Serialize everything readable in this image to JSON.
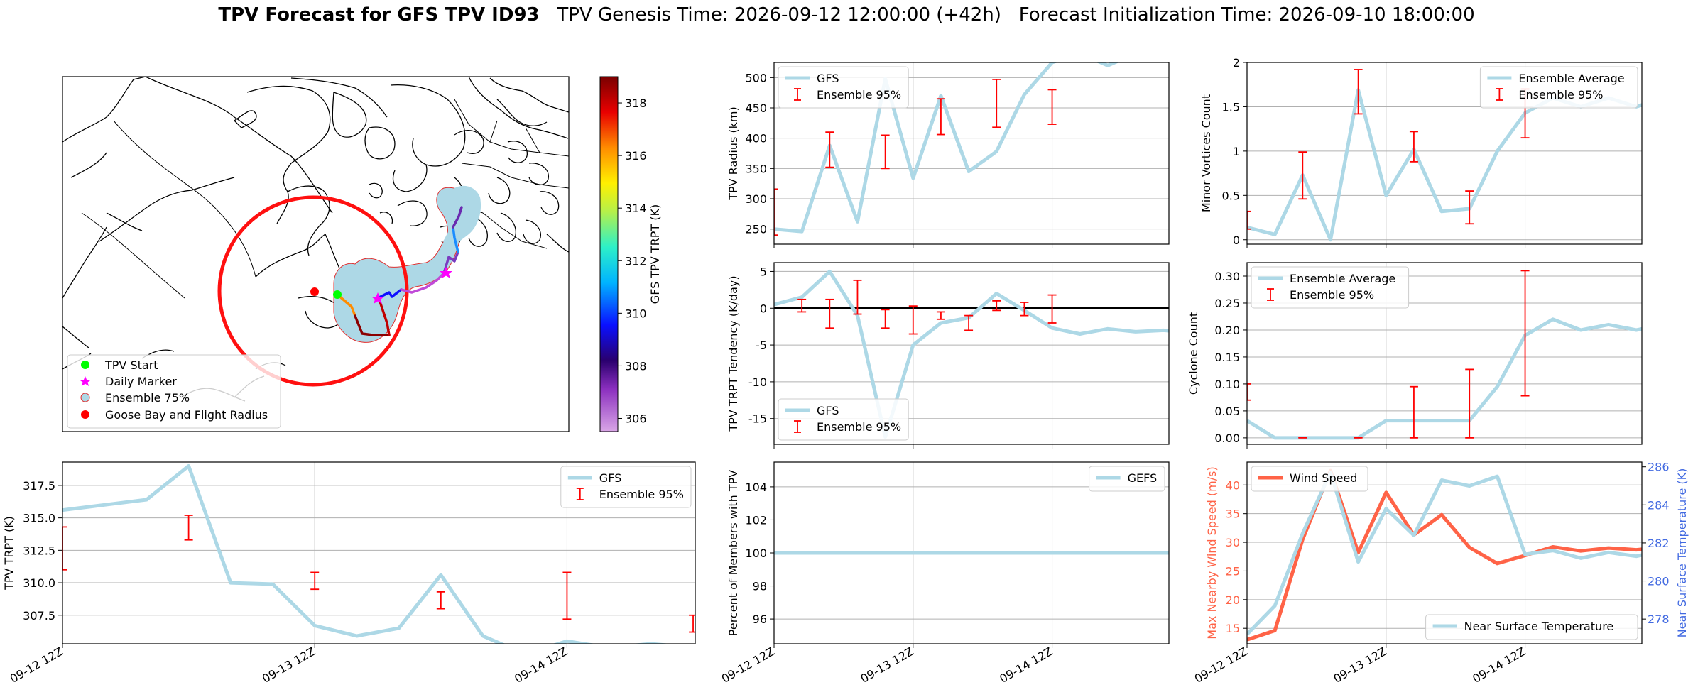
{
  "page": {
    "title_bold": "TPV Forecast for GFS TPV ID93",
    "title_genesis": "TPV Genesis Time: 2026-09-12 12:00:00 (+42h)",
    "title_init": "Forecast Initialization Time: 2026-09-10 18:00:00"
  },
  "colors": {
    "gfs_line": "#add8e6",
    "error_bar": "#ff0000",
    "wind_line": "#ff6347",
    "temp_axis": "#4169e1",
    "zero_line": "#000000"
  },
  "chart_data": [
    {
      "id": "map",
      "type": "map",
      "colorbar": {
        "label": "GFS TPV TRPT (K)",
        "ticks": [
          306,
          308,
          310,
          312,
          314,
          316,
          318
        ],
        "range": [
          305.5,
          319
        ]
      },
      "legend": {
        "items": [
          {
            "label": "TPV Start",
            "marker": "circle",
            "color": "#00ff00"
          },
          {
            "label": "Daily Marker",
            "marker": "star",
            "color": "#ff00ff"
          },
          {
            "label": "Ensemble 75%",
            "marker": "circle",
            "color": "#add8e6"
          },
          {
            "label": "Goose Bay and Flight Radius",
            "marker": "circle",
            "color": "#ff0000"
          }
        ],
        "placement": "lower-left"
      }
    },
    {
      "id": "radius",
      "type": "line",
      "ylabel": "TPV Radius (km)",
      "yticks": [
        250,
        300,
        350,
        400,
        450,
        500
      ],
      "ylim": [
        225,
        525
      ],
      "xlim": [
        1,
        15.2
      ],
      "x": [
        1,
        2,
        3,
        4,
        5,
        6,
        7,
        8,
        9,
        10,
        11,
        12,
        13,
        14,
        15,
        16
      ],
      "series": [
        {
          "name": "GFS",
          "values": [
            250,
            246,
            388,
            262,
            498,
            334,
            470,
            345,
            378,
            472,
            525,
            540,
            520,
            540,
            530,
            540
          ]
        }
      ],
      "errorbars": [
        {
          "x": 1,
          "low": 240,
          "high": 316
        },
        {
          "x": 3,
          "low": 352,
          "high": 410
        },
        {
          "x": 5,
          "low": 350,
          "high": 405
        },
        {
          "x": 7,
          "low": 406,
          "high": 465
        },
        {
          "x": 9,
          "low": 418,
          "high": 497
        },
        {
          "x": 11,
          "low": 423,
          "high": 480
        }
      ],
      "legend": [
        {
          "label": "GFS",
          "kind": "line"
        },
        {
          "label": "Ensemble 95%",
          "kind": "errorbar"
        }
      ],
      "legend_placement": "upper-left"
    },
    {
      "id": "minor",
      "type": "line",
      "ylabel": "Minor Vortices Count",
      "yticks": [
        0.0,
        0.5,
        1.0,
        1.5,
        2.0
      ],
      "ylim": [
        -0.05,
        2.0
      ],
      "xlim": [
        1,
        15.2
      ],
      "x": [
        1,
        2,
        3,
        4,
        5,
        6,
        7,
        8,
        9,
        10,
        11,
        12,
        13,
        14,
        15,
        16
      ],
      "series": [
        {
          "name": "Ensemble Average",
          "values": [
            0.14,
            0.06,
            0.73,
            0.0,
            1.69,
            0.5,
            1.02,
            0.32,
            0.35,
            1.0,
            1.43,
            1.6,
            1.5,
            1.6,
            1.5,
            1.6
          ]
        }
      ],
      "errorbars": [
        {
          "x": 1,
          "low": 0.12,
          "high": 0.32
        },
        {
          "x": 3,
          "low": 0.46,
          "high": 0.99
        },
        {
          "x": 5,
          "low": 1.42,
          "high": 1.92
        },
        {
          "x": 7,
          "low": 0.88,
          "high": 1.22
        },
        {
          "x": 9,
          "low": 0.18,
          "high": 0.55
        },
        {
          "x": 11,
          "low": 1.15,
          "high": 1.7
        }
      ],
      "legend": [
        {
          "label": "Ensemble Average",
          "kind": "line"
        },
        {
          "label": "Ensemble 95%",
          "kind": "errorbar"
        }
      ],
      "legend_placement": "upper-right"
    },
    {
      "id": "tendency",
      "type": "line",
      "ylabel": "TPV TRPT Tendency (K/day)",
      "yticks": [
        -15,
        -10,
        -5,
        0,
        5
      ],
      "ylim": [
        -18.5,
        6.2
      ],
      "xlim": [
        1,
        15.2
      ],
      "zero_line": 0,
      "x": [
        1,
        2,
        3,
        4,
        5,
        6,
        7,
        8,
        9,
        10,
        11,
        12,
        13,
        14,
        15,
        16
      ],
      "series": [
        {
          "name": "GFS",
          "values": [
            0.5,
            1.5,
            5.0,
            -1.0,
            -17.5,
            -5.0,
            -2.0,
            -1.3,
            2.0,
            -0.3,
            -2.7,
            -3.5,
            -2.8,
            -3.2,
            -3.0,
            -3.3
          ]
        }
      ],
      "errorbars": [
        {
          "x": 2,
          "low": -0.5,
          "high": 1.2
        },
        {
          "x": 3,
          "low": -2.7,
          "high": 1.2
        },
        {
          "x": 4,
          "low": -0.8,
          "high": 3.8
        },
        {
          "x": 5,
          "low": -2.7,
          "high": -0.2
        },
        {
          "x": 6,
          "low": -3.5,
          "high": 0.3
        },
        {
          "x": 7,
          "low": -1.5,
          "high": -0.5
        },
        {
          "x": 8,
          "low": -3.0,
          "high": -1.0
        },
        {
          "x": 9,
          "low": -0.3,
          "high": 1.0
        },
        {
          "x": 10,
          "low": -1.0,
          "high": 0.8
        },
        {
          "x": 11,
          "low": -2.0,
          "high": 1.8
        }
      ],
      "legend": [
        {
          "label": "GFS",
          "kind": "line"
        },
        {
          "label": "Ensemble 95%",
          "kind": "errorbar"
        }
      ],
      "legend_placement": "lower-left"
    },
    {
      "id": "cyclone",
      "type": "line",
      "ylabel": "Cyclone Count",
      "yticks": [
        0.0,
        0.05,
        0.1,
        0.15,
        0.2,
        0.25,
        0.3
      ],
      "ytick_labels": [
        "0.00",
        "0.05",
        "0.10",
        "0.15",
        "0.20",
        "0.25",
        "0.30"
      ],
      "ylim": [
        -0.012,
        0.325
      ],
      "xlim": [
        1,
        15.2
      ],
      "x": [
        1,
        2,
        3,
        4,
        5,
        6,
        7,
        8,
        9,
        10,
        11,
        12,
        13,
        14,
        15,
        16
      ],
      "series": [
        {
          "name": "Ensemble Average",
          "values": [
            0.032,
            0.0,
            0.0,
            0.0,
            0.0,
            0.032,
            0.032,
            0.032,
            0.032,
            0.095,
            0.19,
            0.22,
            0.2,
            0.21,
            0.2,
            0.21
          ]
        }
      ],
      "errorbars": [
        {
          "x": 1,
          "low": 0.07,
          "high": 0.1
        },
        {
          "x": 3,
          "low": 0.0,
          "high": 0.001
        },
        {
          "x": 5,
          "low": 0.0,
          "high": 0.001
        },
        {
          "x": 7,
          "low": 0.0,
          "high": 0.095
        },
        {
          "x": 9,
          "low": 0.0,
          "high": 0.127
        },
        {
          "x": 11,
          "low": 0.078,
          "high": 0.31
        }
      ],
      "legend": [
        {
          "label": "Ensemble Average",
          "kind": "line"
        },
        {
          "label": "Ensemble 95%",
          "kind": "errorbar"
        }
      ],
      "legend_placement": "upper-left"
    },
    {
      "id": "trpt",
      "type": "line",
      "ylabel": "TPV TRPT (K)",
      "yticks": [
        307.5,
        310.0,
        312.5,
        315.0,
        317.5
      ],
      "ytick_labels": [
        "307.5",
        "310.0",
        "312.5",
        "315.0",
        "317.5"
      ],
      "ylim": [
        305.3,
        319.3
      ],
      "xlim": [
        1,
        16.05
      ],
      "x": [
        1,
        2,
        3,
        4,
        5,
        6,
        7,
        8,
        9,
        10,
        11,
        12,
        13,
        14,
        15,
        16,
        17
      ],
      "xticks": [
        1,
        7,
        13
      ],
      "xtick_labels": [
        "09-12 12Z",
        "09-13 12Z",
        "09-14 12Z"
      ],
      "series": [
        {
          "name": "GFS",
          "values": [
            315.6,
            316.0,
            316.4,
            319.0,
            310.0,
            309.9,
            306.7,
            305.9,
            306.5,
            310.6,
            305.9,
            304.5,
            305.5,
            305.0,
            305.3,
            305.0,
            305.5
          ]
        }
      ],
      "errorbars": [
        {
          "x": 1,
          "low": 311.0,
          "high": 314.3
        },
        {
          "x": 4,
          "low": 313.3,
          "high": 315.2
        },
        {
          "x": 7,
          "low": 309.5,
          "high": 310.8
        },
        {
          "x": 10,
          "low": 308.0,
          "high": 309.3
        },
        {
          "x": 13,
          "low": 307.2,
          "high": 310.8
        },
        {
          "x": 16,
          "low": 306.2,
          "high": 307.5
        }
      ],
      "legend": [
        {
          "label": "GFS",
          "kind": "line"
        },
        {
          "label": "Ensemble 95%",
          "kind": "errorbar"
        }
      ],
      "legend_placement": "upper-right"
    },
    {
      "id": "percent",
      "type": "line",
      "ylabel": "Percent of Members with TPV",
      "yticks": [
        96,
        98,
        100,
        102,
        104
      ],
      "ylim": [
        94.5,
        105.5
      ],
      "xlim": [
        1,
        15.2
      ],
      "x": [
        1,
        16
      ],
      "xticks": [
        1,
        6,
        11
      ],
      "xtick_labels": [
        "09-12 12Z",
        "09-13 12Z",
        "09-14 12Z"
      ],
      "series": [
        {
          "name": "GEFS",
          "values": [
            100,
            100
          ]
        }
      ],
      "legend": [
        {
          "label": "GEFS",
          "kind": "line"
        }
      ],
      "legend_placement": "upper-right"
    },
    {
      "id": "wind",
      "type": "line",
      "ylabel": "Max Nearby Wind Speed (m/s)",
      "ylabel_right": "Near Surface Temperature (K)",
      "yticks": [
        15,
        20,
        25,
        30,
        35,
        40
      ],
      "ylim": [
        12.3,
        44
      ],
      "yticks_right": [
        278,
        280,
        282,
        284,
        286
      ],
      "ylim_right": [
        276.7,
        286.25
      ],
      "xlim": [
        1,
        15.2
      ],
      "x": [
        1,
        2,
        3,
        4,
        5,
        6,
        7,
        8,
        9,
        10,
        11,
        12,
        13,
        14,
        15,
        16
      ],
      "xticks": [
        1,
        6,
        11
      ],
      "xtick_labels": [
        "09-12 12Z",
        "09-13 12Z",
        "09-14 12Z"
      ],
      "series": [
        {
          "name": "Wind Speed",
          "axis": "left",
          "values": [
            13.0,
            14.6,
            30.5,
            42.5,
            28.2,
            38.7,
            31.3,
            34.8,
            29.1,
            26.3,
            27.7,
            29.2,
            28.5,
            29.0,
            28.7,
            29.1
          ]
        },
        {
          "name": "Near Surface Temperature",
          "axis": "right",
          "values": [
            277.2,
            278.7,
            282.5,
            285.7,
            281.0,
            283.8,
            282.4,
            285.3,
            285.0,
            285.5,
            281.4,
            281.6,
            281.2,
            281.5,
            281.3,
            281.6
          ]
        }
      ],
      "legend": [
        {
          "label": "Wind Speed",
          "kind": "line"
        }
      ],
      "legend_right": [
        {
          "label": "Near Surface Temperature",
          "kind": "line"
        }
      ],
      "legend_placement": "upper-left"
    }
  ]
}
